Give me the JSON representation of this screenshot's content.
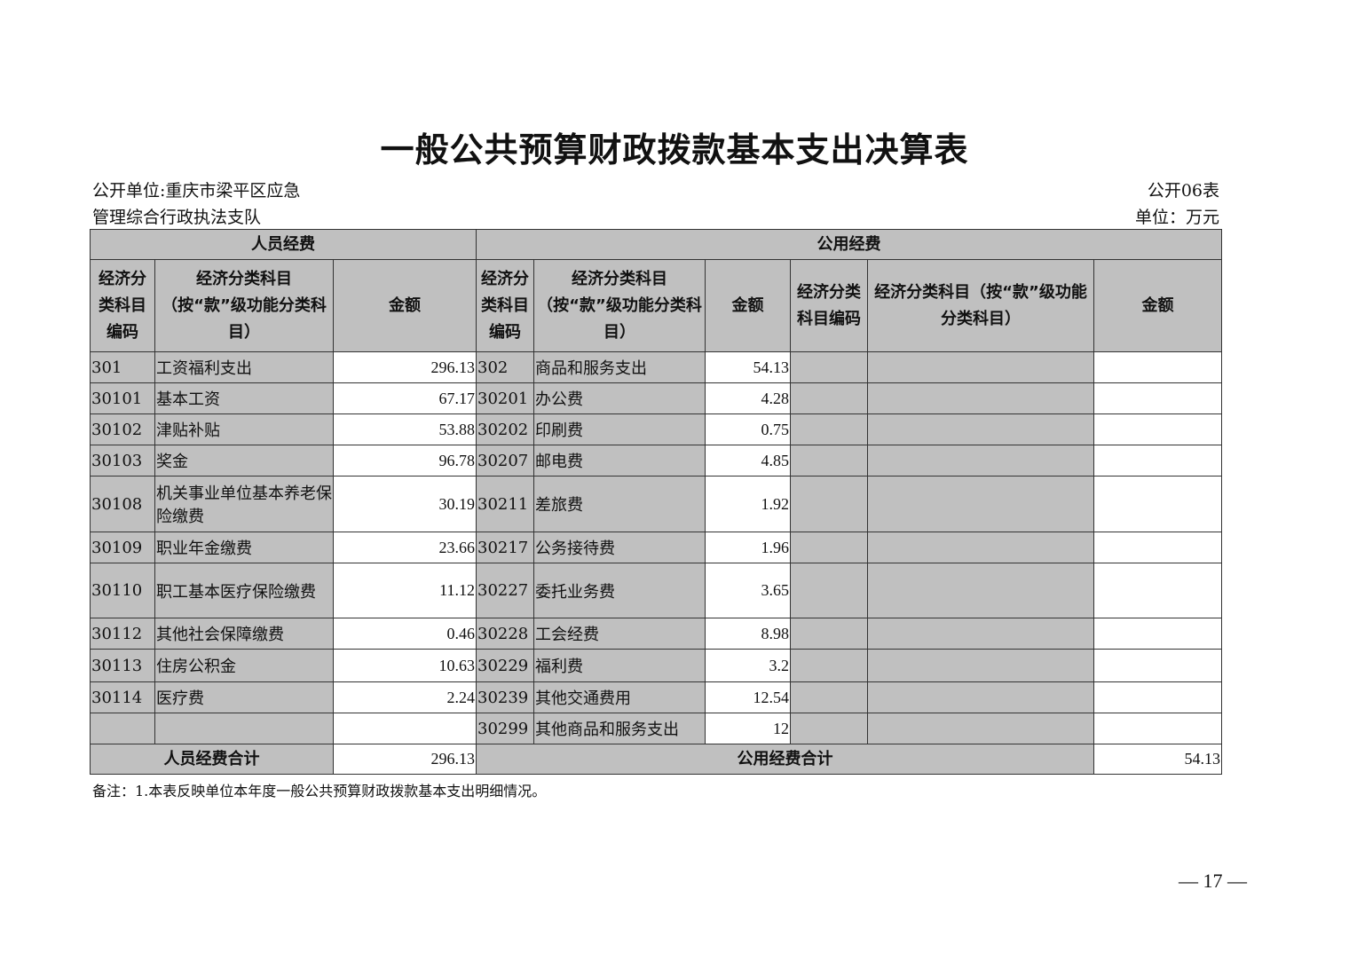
{
  "title": "一般公共预算财政拨款基本支出决算表",
  "unit_line1": "公开单位:重庆市梁平区应急",
  "unit_line2": "管理综合行政执法支队",
  "table_no": "公开06表",
  "currency": "单位：万元",
  "headers": {
    "personnel": "人员经费",
    "public": "公用经费",
    "code": "经济分类科目编码",
    "name": "经济分类科目（按“款”级功能分类科目）",
    "amount": "金额"
  },
  "rows": [
    {
      "c1": "301",
      "n1": "工资福利支出",
      "a1": "296.13",
      "c2": "302",
      "n2": "商品和服务支出",
      "a2": "54.13"
    },
    {
      "c1": "30101",
      "n1": "基本工资",
      "a1": "67.17",
      "c2": "30201",
      "n2": "办公费",
      "a2": "4.28"
    },
    {
      "c1": "30102",
      "n1": "津贴补贴",
      "a1": "53.88",
      "c2": "30202",
      "n2": "印刷费",
      "a2": "0.75"
    },
    {
      "c1": "30103",
      "n1": "奖金",
      "a1": "96.78",
      "c2": "30207",
      "n2": "邮电费",
      "a2": "4.85"
    },
    {
      "c1": "30108",
      "n1": "机关事业单位基本养老保险缴费",
      "a1": "30.19",
      "c2": "30211",
      "n2": "差旅费",
      "a2": "1.92"
    },
    {
      "c1": "30109",
      "n1": "职业年金缴费",
      "a1": "23.66",
      "c2": "30217",
      "n2": "公务接待费",
      "a2": "1.96"
    },
    {
      "c1": "30110",
      "n1": "职工基本医疗保险缴费",
      "a1": "11.12",
      "c2": "30227",
      "n2": "委托业务费",
      "a2": "3.65"
    },
    {
      "c1": "30112",
      "n1": "其他社会保障缴费",
      "a1": "0.46",
      "c2": "30228",
      "n2": "工会经费",
      "a2": "8.98"
    },
    {
      "c1": "30113",
      "n1": "住房公积金",
      "a1": "10.63",
      "c2": "30229",
      "n2": "福利费",
      "a2": "3.2"
    },
    {
      "c1": "30114",
      "n1": "医疗费",
      "a1": "2.24",
      "c2": "30239",
      "n2": "其他交通费用",
      "a2": "12.54"
    },
    {
      "c1": "",
      "n1": "",
      "a1": "",
      "c2": "30299",
      "n2": "其他商品和服务支出",
      "a2": "12"
    }
  ],
  "totals": {
    "personnel_label": "人员经费合计",
    "personnel_value": "296.13",
    "public_label": "公用经费合计",
    "public_value": "54.13"
  },
  "note": "备注：1.本表反映单位本年度一般公共预算财政拨款基本支出明细情况。",
  "page_number": "— 17 —"
}
